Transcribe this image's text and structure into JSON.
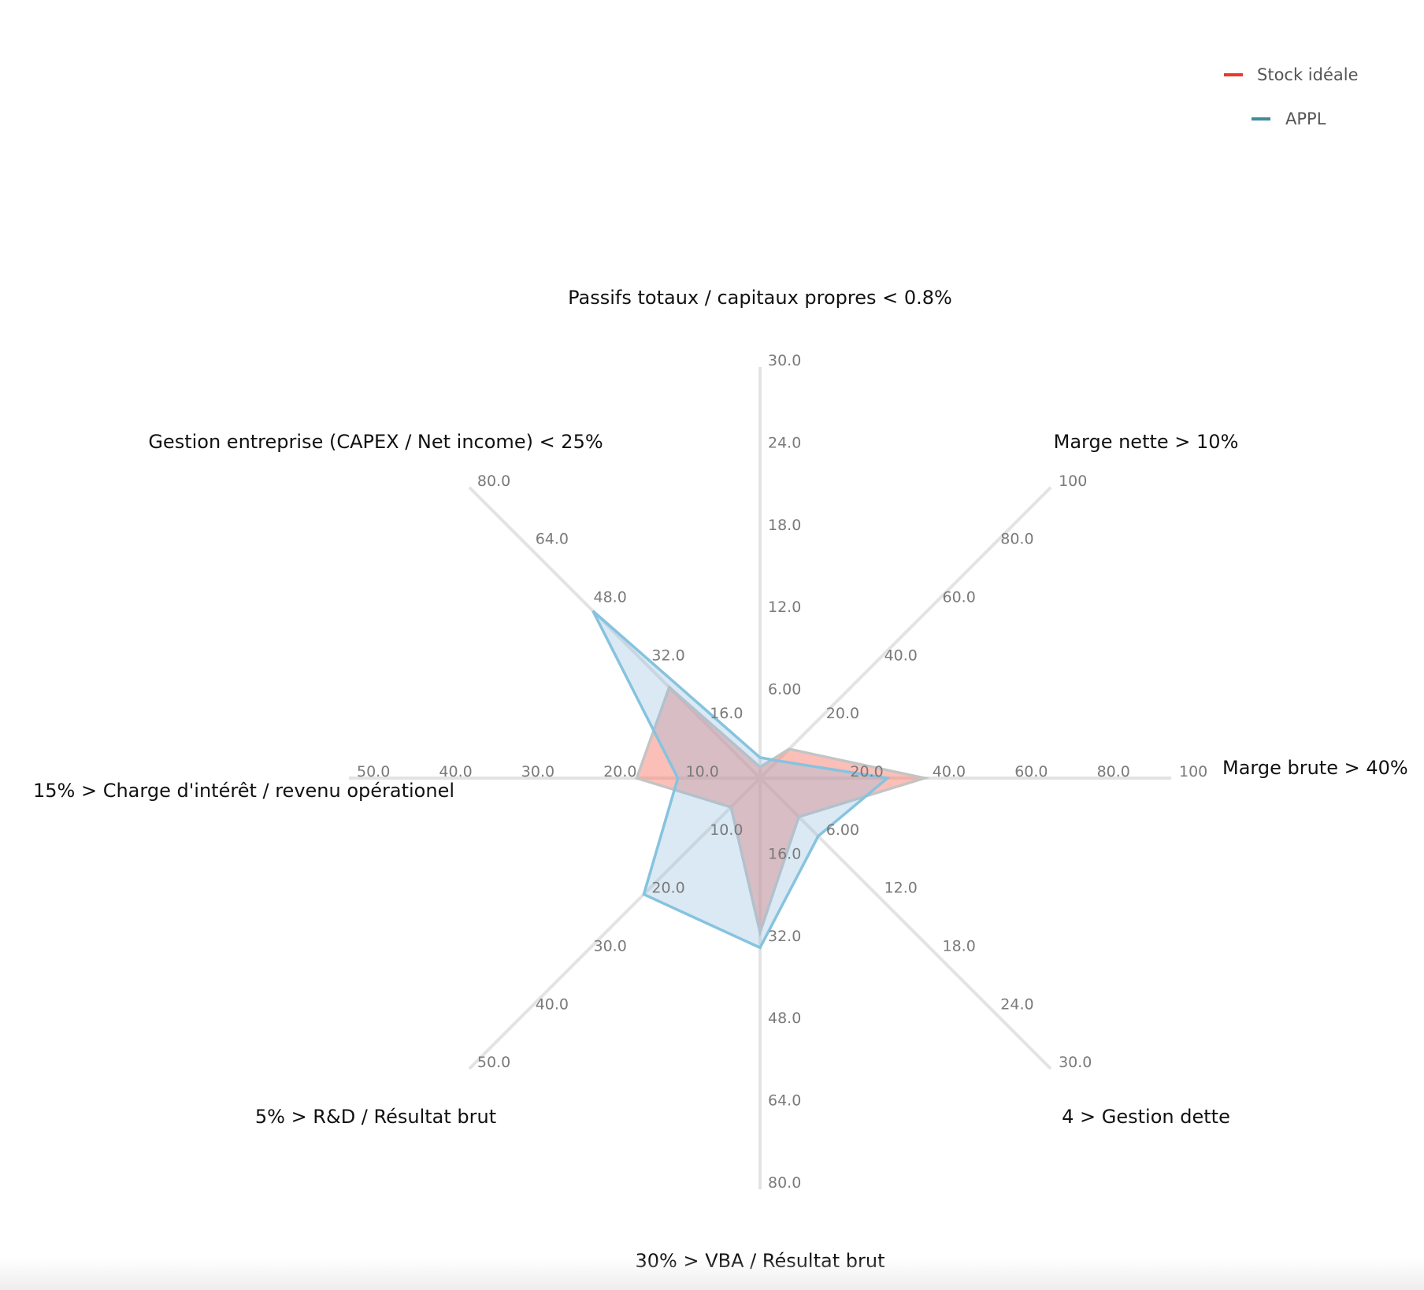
{
  "chart_data": {
    "type": "radar",
    "axes": [
      {
        "label": "Passifs totaux / capitaux propres < 0.8%",
        "ticks": [
          "6.00",
          "12.0",
          "18.0",
          "24.0",
          "30.0"
        ],
        "max": 30
      },
      {
        "label": "Marge nette > 10%",
        "ticks": [
          "20.0",
          "40.0",
          "60.0",
          "80.0",
          "100"
        ],
        "max": 100
      },
      {
        "label": "Marge brute > 40%",
        "ticks": [
          "20.0",
          "40.0",
          "60.0",
          "80.0",
          "100"
        ],
        "max": 100
      },
      {
        "label": "4 > Gestion dette",
        "ticks": [
          "6.00",
          "12.0",
          "18.0",
          "24.0",
          "30.0"
        ],
        "max": 30
      },
      {
        "label": "30% > VBA / Résultat brut",
        "ticks": [
          "16.0",
          "32.0",
          "48.0",
          "64.0",
          "80.0"
        ],
        "max": 80
      },
      {
        "label": "5% > R&D / Résultat brut",
        "ticks": [
          "10.0",
          "20.0",
          "30.0",
          "40.0",
          "50.0"
        ],
        "max": 50
      },
      {
        "label": "15% > Charge d'intérêt / revenu opérationel",
        "ticks": [
          "10.0",
          "20.0",
          "30.0",
          "40.0",
          "50.0"
        ],
        "max": 50
      },
      {
        "label": "Gestion entreprise (CAPEX / Net income) < 25%",
        "ticks": [
          "16.0",
          "32.0",
          "48.0",
          "64.0",
          "80.0"
        ],
        "max": 80
      }
    ],
    "series": [
      {
        "name": "Stock idéale",
        "color": "#e8392d",
        "fill": "rgba(250,128,114,0.5)",
        "stroke": "#c4c4c4",
        "values": [
          0.8,
          10,
          40,
          4,
          30,
          5,
          15,
          25
        ]
      },
      {
        "name": "APPL",
        "color": "#3d8c9c",
        "fill": "rgba(140,188,220,0.32)",
        "stroke": "#86c3df",
        "values": [
          1.5,
          6,
          31,
          6,
          33,
          20,
          10,
          46
        ]
      }
    ],
    "legend": {
      "position": "top-right"
    },
    "grid": false
  }
}
